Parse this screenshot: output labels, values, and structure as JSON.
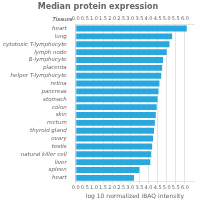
{
  "chart_data": {
    "type": "bar",
    "orientation": "horizontal",
    "title": "Median protein expression",
    "xlabel": "log 10 normalized iBAQ intensity",
    "ylabel": "Tissues",
    "categories": [
      "heart",
      "lung",
      "cytotoxic T-lymphocyte",
      "lymph node",
      "B-lymphocyte",
      "placenta",
      "helper T-lymphocyte",
      "retina",
      "pancreas",
      "stomach",
      "colon",
      "skin",
      "rectum",
      "thyroid gland",
      "ovary",
      "testis",
      "natural killer cell",
      "liver",
      "spleen",
      "heart"
    ],
    "values": [
      6.1,
      5.3,
      5.15,
      5.0,
      4.8,
      4.75,
      4.7,
      4.6,
      4.55,
      4.5,
      4.45,
      4.4,
      4.35,
      4.3,
      4.25,
      4.2,
      4.15,
      4.1,
      3.5,
      3.2
    ],
    "color": "#29a8e0",
    "xlim": [
      0.0,
      6.5
    ],
    "xticks": [
      {
        "value": 0,
        "label": "0.0"
      },
      0.5,
      {
        "value": 1,
        "label": "1.0"
      },
      1.5,
      {
        "value": 2,
        "label": "2.0"
      },
      2.5,
      {
        "value": 3,
        "label": "3.0"
      },
      3.5,
      {
        "value": 4,
        "label": "4.0"
      },
      4.5,
      {
        "value": 5,
        "label": "5.0"
      },
      5.5,
      {
        "value": 6,
        "label": "6.0"
      }
    ],
    "grid": true
  }
}
